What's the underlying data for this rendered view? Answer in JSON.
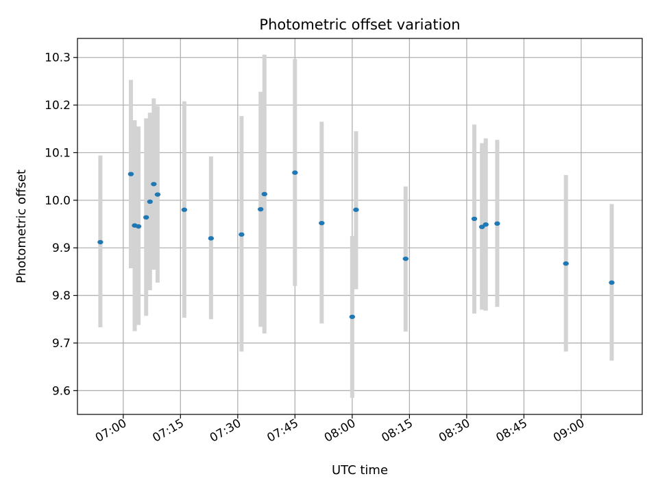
{
  "chart_data": {
    "type": "scatter",
    "title": "Photometric offset variation",
    "xlabel": "UTC time",
    "ylabel": "Photometric offset",
    "x_axis_kind": "time",
    "xlim": [
      "06:48",
      "09:16"
    ],
    "ylim": [
      9.55,
      10.34
    ],
    "x_ticks": [
      "07:00",
      "07:15",
      "07:30",
      "07:45",
      "08:00",
      "08:15",
      "08:30",
      "08:45",
      "09:00"
    ],
    "y_ticks": [
      9.6,
      9.7,
      9.8,
      9.9,
      10.0,
      10.1,
      10.2,
      10.3
    ],
    "y_tick_labels": [
      "9.6",
      "9.7",
      "9.8",
      "9.9",
      "10.0",
      "10.1",
      "10.2",
      "10.3"
    ],
    "grid": true,
    "colors": {
      "point": "#1f77b4",
      "error_bar": "#d3d3d3",
      "grid": "#b0b0b0",
      "axes": "#000000"
    },
    "points": [
      {
        "time": "06:54",
        "y": 9.912,
        "y_low": 9.733,
        "y_high": 10.094
      },
      {
        "time": "07:02",
        "y": 10.055,
        "y_low": 9.857,
        "y_high": 10.253
      },
      {
        "time": "07:03",
        "y": 9.947,
        "y_low": 9.725,
        "y_high": 10.168
      },
      {
        "time": "07:04",
        "y": 9.945,
        "y_low": 9.738,
        "y_high": 10.155
      },
      {
        "time": "07:06",
        "y": 9.964,
        "y_low": 9.757,
        "y_high": 10.172
      },
      {
        "time": "07:07",
        "y": 9.997,
        "y_low": 9.811,
        "y_high": 10.184
      },
      {
        "time": "07:08",
        "y": 10.034,
        "y_low": 9.854,
        "y_high": 10.214
      },
      {
        "time": "07:09",
        "y": 10.012,
        "y_low": 9.827,
        "y_high": 10.198
      },
      {
        "time": "07:16",
        "y": 9.98,
        "y_low": 9.753,
        "y_high": 10.208
      },
      {
        "time": "07:23",
        "y": 9.92,
        "y_low": 9.75,
        "y_high": 10.092
      },
      {
        "time": "07:31",
        "y": 9.928,
        "y_low": 9.682,
        "y_high": 10.177
      },
      {
        "time": "07:36",
        "y": 9.981,
        "y_low": 9.734,
        "y_high": 10.228
      },
      {
        "time": "07:37",
        "y": 10.013,
        "y_low": 9.72,
        "y_high": 10.306
      },
      {
        "time": "07:45",
        "y": 10.058,
        "y_low": 9.82,
        "y_high": 10.297
      },
      {
        "time": "07:52",
        "y": 9.952,
        "y_low": 9.741,
        "y_high": 10.165
      },
      {
        "time": "08:00",
        "y": 9.755,
        "y_low": 9.585,
        "y_high": 9.925
      },
      {
        "time": "08:01",
        "y": 9.98,
        "y_low": 9.813,
        "y_high": 10.145
      },
      {
        "time": "08:14",
        "y": 9.877,
        "y_low": 9.724,
        "y_high": 10.029
      },
      {
        "time": "08:32",
        "y": 9.961,
        "y_low": 9.762,
        "y_high": 10.159
      },
      {
        "time": "08:34",
        "y": 9.944,
        "y_low": 9.77,
        "y_high": 10.12
      },
      {
        "time": "08:35",
        "y": 9.949,
        "y_low": 9.768,
        "y_high": 10.13
      },
      {
        "time": "08:38",
        "y": 9.951,
        "y_low": 9.776,
        "y_high": 10.127
      },
      {
        "time": "08:56",
        "y": 9.867,
        "y_low": 9.682,
        "y_high": 10.053
      },
      {
        "time": "09:08",
        "y": 9.827,
        "y_low": 9.663,
        "y_high": 9.992
      }
    ]
  }
}
